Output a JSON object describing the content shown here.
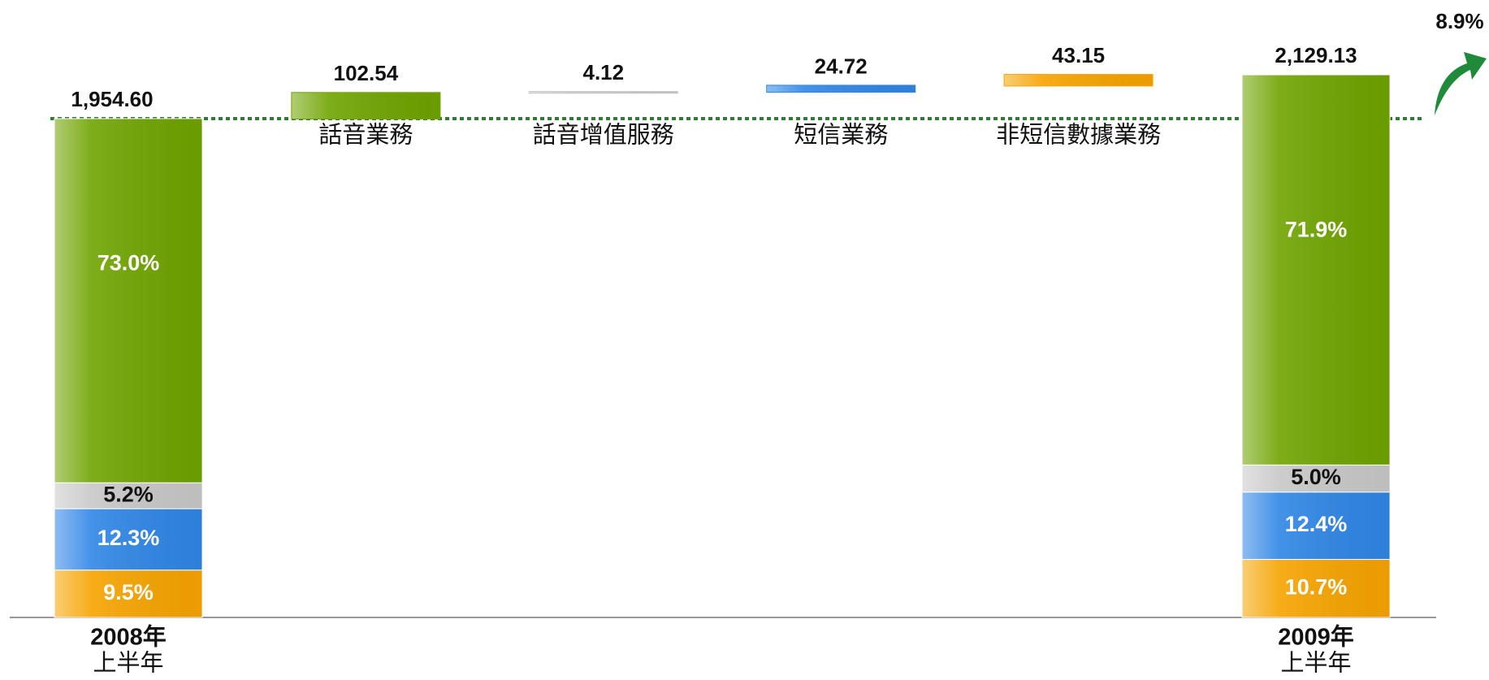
{
  "chart_data": {
    "type": "waterfall",
    "categories": [
      [
        "2008年",
        "上半年"
      ],
      "話音業務",
      "話音增值服務",
      "短信業務",
      "非短信數據業務",
      [
        "2009年",
        "上半年"
      ]
    ],
    "segment_colors": [
      "#6fa400",
      "#c8c8c8",
      "#2f86e6",
      "#f6a400"
    ],
    "totals": [
      1954.6,
      2129.13
    ],
    "total_labels": [
      "1,954.60",
      "2,129.13"
    ],
    "stacks": [
      {
        "values": [
          73.0,
          5.2,
          12.3,
          9.5
        ],
        "value_labels": [
          "73.0%",
          "5.2%",
          "12.3%",
          "9.5%"
        ]
      },
      {
        "values": [
          71.9,
          5.0,
          12.4,
          10.7
        ],
        "value_labels": [
          "71.9%",
          "5.0%",
          "12.4%",
          "10.7%"
        ]
      }
    ],
    "increments": [
      102.54,
      4.12,
      24.72,
      43.15
    ],
    "growth": 8.9,
    "growth_label": "8.9%"
  }
}
